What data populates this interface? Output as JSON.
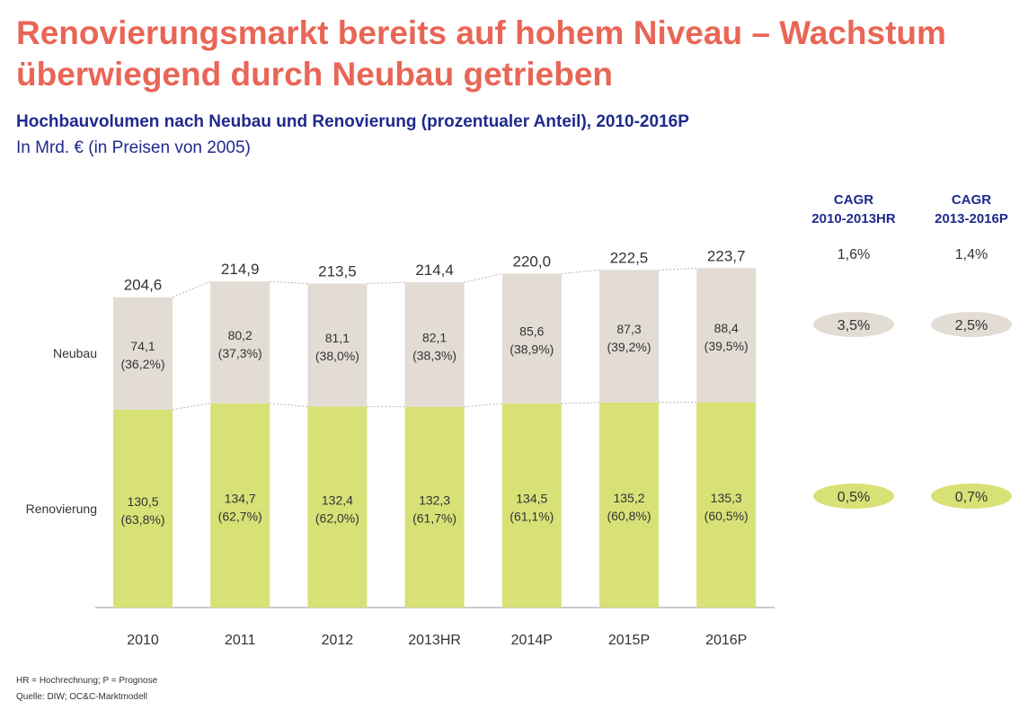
{
  "title": "Renovierungsmarkt bereits auf hohem Niveau – Wachstum überwiegend durch Neubau getrieben",
  "subtitle": "Hochbauvolumen nach Neubau und Renovierung (prozentualer Anteil), 2010-2016P",
  "unit_note": "In Mrd. € (in Preisen von 2005)",
  "footnote": "HR = Hochrechnung; P = Prognose",
  "source": "Quelle: DIW; OC&C-Marktmodell",
  "colors": {
    "neubau": "#e3dcd4",
    "renovierung": "#d8e176",
    "title": "#e96656",
    "cagr_header": "#1f2a8c"
  },
  "chart_data": {
    "type": "bar",
    "stacked": true,
    "categories": [
      "2010",
      "2011",
      "2012",
      "2013HR",
      "2014P",
      "2015P",
      "2016P"
    ],
    "series": [
      {
        "name": "Renovierung",
        "values": [
          130.5,
          134.7,
          132.4,
          132.3,
          134.5,
          135.2,
          135.3
        ],
        "labels": [
          "130,5",
          "134,7",
          "132,4",
          "132,3",
          "134,5",
          "135,2",
          "135,3"
        ],
        "share_labels": [
          "(63,8%)",
          "(62,7%)",
          "(62,0%)",
          "(61,7%)",
          "(61,1%)",
          "(60,8%)",
          "(60,5%)"
        ]
      },
      {
        "name": "Neubau",
        "values": [
          74.1,
          80.2,
          81.1,
          82.1,
          85.6,
          87.3,
          88.4
        ],
        "labels": [
          "74,1",
          "80,2",
          "81,1",
          "82,1",
          "85,6",
          "87,3",
          "88,4"
        ],
        "share_labels": [
          "(36,2%)",
          "(37,3%)",
          "(38,0%)",
          "(38,3%)",
          "(38,9%)",
          "(39,2%)",
          "(39,5%)"
        ]
      }
    ],
    "totals": [
      204.6,
      214.9,
      213.5,
      214.4,
      220.0,
      222.5,
      223.7
    ],
    "total_labels": [
      "204,6",
      "214,9",
      "213,5",
      "214,4",
      "220,0",
      "222,5",
      "223,7"
    ],
    "cagr": {
      "columns": [
        {
          "header_line1": "CAGR",
          "header_line2": "2010-2013HR",
          "total": "1,6%",
          "neubau": "3,5%",
          "renovierung": "0,5%"
        },
        {
          "header_line1": "CAGR",
          "header_line2": "2013-2016P",
          "total": "1,4%",
          "neubau": "2,5%",
          "renovierung": "0,7%"
        }
      ]
    }
  }
}
